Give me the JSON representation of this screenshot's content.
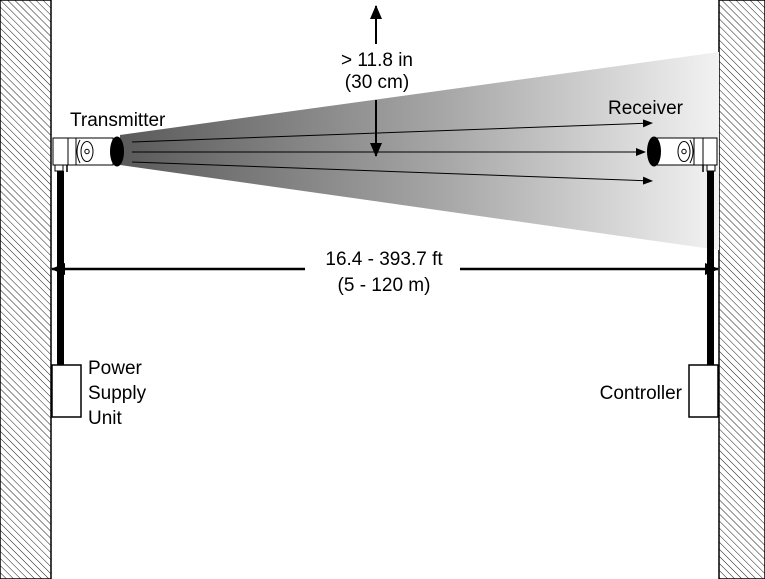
{
  "labels": {
    "transmitter": "Transmitter",
    "receiver": "Receiver",
    "clearance_in": "> 11.8 in",
    "clearance_cm": "(30 cm)",
    "distance_ft": "16.4 - 393.7 ft",
    "distance_m": "(5 - 120 m)",
    "psu_line1": "Power",
    "psu_line2": "Supply",
    "psu_line3": "Unit",
    "controller": "Controller"
  },
  "colors": {
    "line": "#000000",
    "wall_fill": "#ffffff",
    "beam_dark": "#5a5a5a",
    "beam_light": "#f2f2f2"
  }
}
